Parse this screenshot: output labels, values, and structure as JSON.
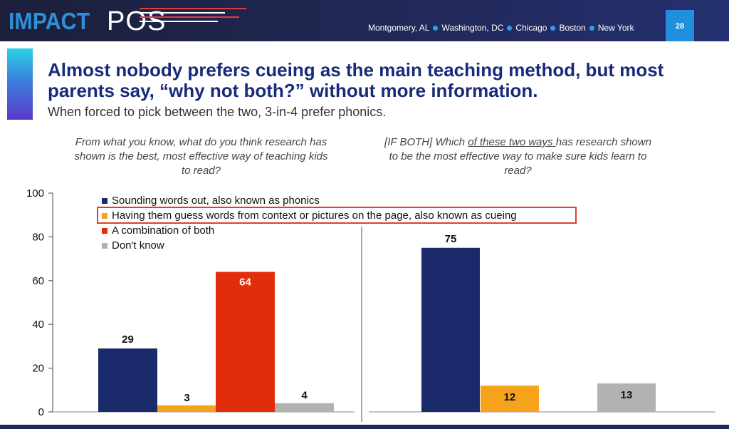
{
  "header": {
    "brand_impact": "IMPACT",
    "brand_pos": "POS",
    "cities": [
      "Montgomery, AL",
      "Washington, DC",
      "Chicago",
      "Boston",
      "New York"
    ],
    "page_number": "28"
  },
  "slide": {
    "title": "Almost nobody prefers cueing as the main teaching method, but most parents say, “why not both?” without more information.",
    "subtitle": "When forced to pick between the two, 3-in-4 prefer phonics."
  },
  "questions": {
    "left": "From what you know, what do you think research has shown is the best, most effective way of teaching kids to read?",
    "right_prefix": "[IF BOTH] Which ",
    "right_underlined": "of these two ways ",
    "right_suffix": "has research shown to be the most effective way to make sure kids learn to read?"
  },
  "legend": {
    "items": [
      {
        "label": "Sounding words out, also known as phonics",
        "color": "#1b2a6b"
      },
      {
        "label": "Having them guess words from context or pictures on the page, also known as cueing",
        "color": "#f7a21b"
      },
      {
        "label": "A combination of both",
        "color": "#e12d0c"
      },
      {
        "label": "Don't know",
        "color": "#b2b2b2"
      }
    ],
    "highlighted_index": 1,
    "highlight_color": "#e0402a"
  },
  "colors": {
    "header_bg": "#20264f",
    "title": "#172b7a",
    "accent_blue": "#1f8fde"
  },
  "chart_data": [
    {
      "type": "bar",
      "panel": "left",
      "categories": [
        "Sounding words out, also known as phonics",
        "Having them guess words from context or pictures on the page, also known as cueing",
        "A combination of both",
        "Don't know"
      ],
      "values": [
        29,
        3,
        64,
        4
      ],
      "colors": [
        "#1b2a6b",
        "#f7a21b",
        "#e12d0c",
        "#b2b2b2"
      ],
      "data_labels": [
        "29",
        "3",
        "64",
        "4"
      ],
      "ylim": [
        0,
        100
      ],
      "yticks": [
        0,
        20,
        40,
        60,
        80,
        100
      ],
      "xlabel": "",
      "ylabel": ""
    },
    {
      "type": "bar",
      "panel": "right",
      "categories": [
        "Sounding words out, also known as phonics",
        "Having them guess words from context or pictures on the page, also known as cueing",
        "Don't know"
      ],
      "values": [
        75,
        12,
        13
      ],
      "colors": [
        "#1b2a6b",
        "#f7a21b",
        "#b2b2b2"
      ],
      "data_labels": [
        "75",
        "12",
        "13"
      ],
      "ylim": [
        0,
        100
      ],
      "xlabel": "",
      "ylabel": ""
    }
  ]
}
